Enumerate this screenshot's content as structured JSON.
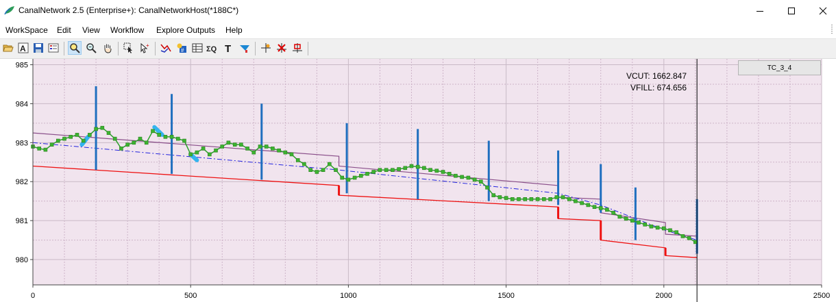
{
  "window": {
    "title": "CanalNetwork 2.5  (Enterprise+): CanalNetworkHost(*188C*)",
    "icon": "leaf-app-icon"
  },
  "menu": {
    "items": [
      "WorkSpace",
      "Edit",
      "View",
      "Workflow",
      "Explore Outputs",
      "Help"
    ]
  },
  "toolbar": {
    "icons": [
      "open-folder-icon",
      "font-icon",
      "save-icon",
      "properties-icon",
      "zoom-window-icon",
      "zoom-icon",
      "pan-hand-icon",
      "select-icon",
      "pointer-add-icon",
      "polyline-icon",
      "calculate-icon",
      "table-icon",
      "sigma-icon",
      "text-icon",
      "style-icon",
      "crosshair-icon",
      "delete-point-icon",
      "marker-icon"
    ]
  },
  "legend": {
    "label": "TC_3_4"
  },
  "readouts": {
    "vcut": "VCUT: 1662.847",
    "vfill": "VFILL: 674.656"
  },
  "chart_data": {
    "type": "line",
    "title": "",
    "xlabel": "",
    "ylabel": "",
    "xlim": [
      0,
      2500
    ],
    "ylim": [
      979.35,
      985.15
    ],
    "x_ticks": [
      0,
      500,
      1000,
      1500,
      2000,
      2500
    ],
    "y_ticks": [
      980,
      981,
      982,
      983,
      984,
      985
    ],
    "grid": true,
    "cursor_x": 2105,
    "colors": {
      "plot_bg": "#f1e4ee",
      "ground": "#2ca02c",
      "ground_marker": "#3cb431",
      "design": "#8a4f8a",
      "centerline": "#2222dd",
      "bottom": "#ee1111",
      "structures": "#1f6fbf",
      "highlight": "#33b4ee",
      "cursor": "#000000"
    },
    "series": [
      {
        "name": "ground",
        "style": "line-markers",
        "x": [
          0,
          20,
          40,
          60,
          80,
          100,
          120,
          140,
          160,
          180,
          200,
          220,
          240,
          260,
          280,
          300,
          320,
          340,
          360,
          380,
          400,
          420,
          440,
          460,
          480,
          500,
          520,
          540,
          560,
          580,
          600,
          620,
          640,
          660,
          680,
          700,
          720,
          740,
          760,
          780,
          800,
          820,
          840,
          860,
          880,
          900,
          920,
          940,
          960,
          980,
          1000,
          1020,
          1040,
          1060,
          1080,
          1100,
          1120,
          1140,
          1160,
          1180,
          1200,
          1220,
          1240,
          1260,
          1280,
          1300,
          1320,
          1340,
          1360,
          1380,
          1400,
          1420,
          1440,
          1460,
          1480,
          1500,
          1520,
          1540,
          1560,
          1580,
          1600,
          1620,
          1640,
          1660,
          1680,
          1700,
          1720,
          1740,
          1760,
          1780,
          1800,
          1820,
          1840,
          1860,
          1880,
          1900,
          1920,
          1940,
          1960,
          1980,
          2000,
          2020,
          2040,
          2060,
          2080,
          2100
        ],
        "y": [
          982.9,
          982.85,
          982.82,
          982.95,
          983.05,
          983.1,
          983.15,
          983.2,
          983.05,
          983.2,
          983.35,
          983.38,
          983.25,
          983.1,
          982.85,
          982.95,
          983.0,
          983.1,
          983.0,
          983.3,
          983.2,
          983.15,
          983.15,
          983.1,
          983.05,
          982.7,
          982.75,
          982.85,
          982.7,
          982.8,
          982.9,
          983.0,
          982.95,
          982.95,
          982.85,
          982.75,
          982.9,
          982.9,
          982.85,
          982.8,
          982.75,
          982.7,
          982.55,
          982.45,
          982.3,
          982.25,
          982.3,
          982.45,
          982.3,
          982.1,
          982.05,
          982.1,
          982.15,
          982.2,
          982.25,
          982.3,
          982.3,
          982.3,
          982.32,
          982.35,
          982.4,
          982.38,
          982.35,
          982.3,
          982.28,
          982.25,
          982.2,
          982.15,
          982.12,
          982.1,
          982.05,
          982.0,
          981.85,
          981.65,
          981.6,
          981.58,
          981.55,
          981.55,
          981.55,
          981.55,
          981.55,
          981.55,
          981.55,
          981.6,
          981.6,
          981.55,
          981.5,
          981.45,
          981.4,
          981.35,
          981.32,
          981.28,
          981.2,
          981.1,
          981.05,
          981.0,
          980.95,
          980.9,
          980.85,
          980.82,
          980.8,
          980.75,
          980.7,
          980.6,
          980.55,
          980.45
        ]
      },
      {
        "name": "design",
        "style": "line",
        "x": [
          0,
          970,
          970,
          1665,
          1665,
          1800,
          1800,
          2005,
          2005,
          2105
        ],
        "y": [
          983.25,
          982.65,
          982.4,
          981.9,
          981.6,
          981.55,
          981.2,
          980.95,
          980.65,
          980.6
        ]
      },
      {
        "name": "centerline",
        "style": "dash-dot",
        "x": [
          0,
          970,
          1665,
          1800,
          2005,
          2105
        ],
        "y": [
          983.0,
          982.3,
          981.7,
          981.4,
          980.75,
          980.5
        ]
      },
      {
        "name": "bottom",
        "style": "step",
        "x": [
          0,
          970,
          970,
          1665,
          1665,
          1800,
          1800,
          2005,
          2005,
          2105
        ],
        "y": [
          982.4,
          981.9,
          981.65,
          981.35,
          981.05,
          981.0,
          980.5,
          980.3,
          980.1,
          980.05
        ]
      },
      {
        "name": "structures",
        "style": "vertical-bars",
        "x": [
          200,
          440,
          725,
          995,
          1220,
          1445,
          1665,
          1800,
          1910,
          2105
        ],
        "y_top": [
          984.45,
          984.25,
          984.0,
          983.5,
          983.35,
          983.05,
          982.8,
          982.45,
          981.85,
          981.55
        ],
        "y_bottom": [
          982.3,
          982.2,
          982.05,
          981.7,
          981.55,
          981.5,
          981.4,
          981.2,
          980.5,
          980.15
        ]
      },
      {
        "name": "highlight",
        "style": "thick",
        "segments": [
          {
            "x": [
              155,
              175
            ],
            "y": [
              982.95,
              983.15
            ]
          },
          {
            "x": [
              385,
              410
            ],
            "y": [
              983.4,
              983.2
            ]
          },
          {
            "x": [
              500,
              520
            ],
            "y": [
              982.7,
              982.55
            ]
          }
        ]
      }
    ]
  }
}
